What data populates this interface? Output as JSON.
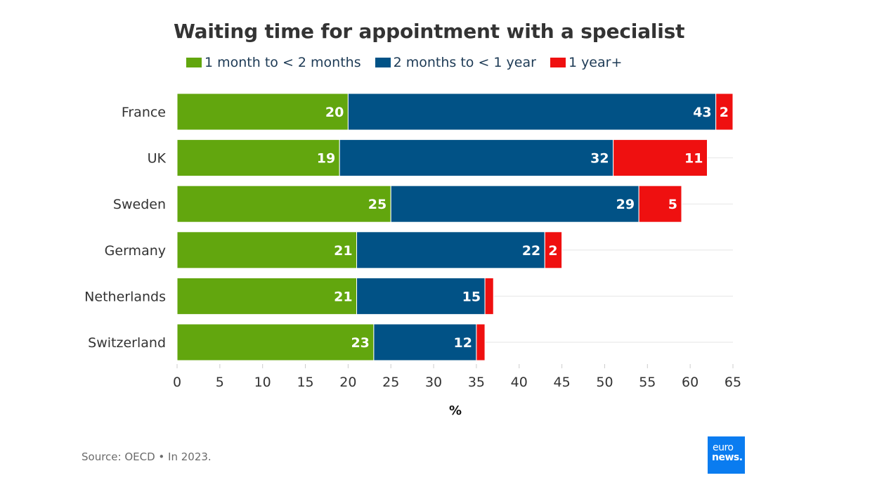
{
  "chart_data": {
    "type": "bar",
    "orientation": "horizontal",
    "stacked": true,
    "title": "Waiting time for appointment with a specialist",
    "xlabel": "%",
    "ylabel": "",
    "xlim": [
      0,
      65
    ],
    "xticks": [
      "0",
      "5",
      "10",
      "15",
      "20",
      "25",
      "30",
      "35",
      "40",
      "45",
      "50",
      "55",
      "60",
      "65"
    ],
    "categories": [
      "France",
      "UK",
      "Sweden",
      "Germany",
      "Netherlands",
      "Switzerland"
    ],
    "series": [
      {
        "name": "1 month to < 2 months",
        "color": "#62a60e",
        "values": [
          20,
          19,
          25,
          21,
          21,
          23
        ],
        "labels": [
          "20",
          "19",
          "25",
          "21",
          "21",
          "23"
        ]
      },
      {
        "name": "2 months to < 1 year",
        "color": "#015286",
        "values": [
          43,
          32,
          29,
          22,
          15,
          12
        ],
        "labels": [
          "43",
          "32",
          "29",
          "22",
          "15",
          "12"
        ]
      },
      {
        "name": "1 year+",
        "color": "#ef1010",
        "values": [
          2,
          11,
          5,
          2,
          1,
          1
        ],
        "labels": [
          "2",
          "11",
          "5",
          "2",
          "",
          ""
        ]
      }
    ],
    "grid": true,
    "legend": "top"
  },
  "source": "Source: OECD • In 2023.",
  "logo": {
    "line1": "euro",
    "line2": "news."
  }
}
